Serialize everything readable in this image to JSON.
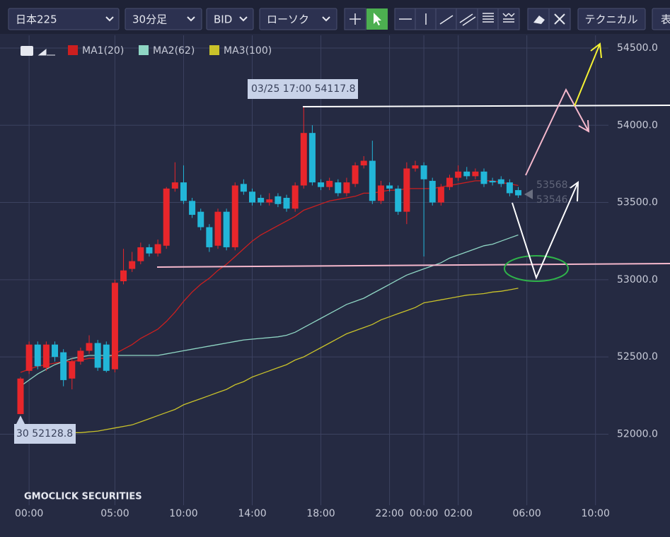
{
  "toolbar": {
    "symbol": "日本225",
    "timeframe": "30分足",
    "price_type": "BID",
    "chart_type": "ローソク",
    "technical": "テクニカル",
    "extra": "表"
  },
  "chart_data": {
    "type": "candlestick",
    "categories": [
      null,
      "00:00",
      null,
      null,
      null,
      null,
      null,
      null,
      null,
      null,
      null,
      "05:00",
      null,
      null,
      null,
      null,
      null,
      null,
      null,
      "10:00",
      null,
      null,
      null,
      null,
      null,
      null,
      null,
      "14:00",
      null,
      null,
      null,
      null,
      null,
      null,
      null,
      "18:00",
      null,
      null,
      null,
      null,
      null,
      null,
      null,
      "22:00",
      null,
      null,
      null,
      "00:00",
      null,
      null,
      null,
      "02:00",
      null,
      null,
      null,
      null,
      null,
      null,
      null,
      "06:00",
      null,
      null,
      null,
      null,
      null,
      null,
      null,
      "10:00"
    ],
    "open": [
      52130,
      52410,
      52580,
      52430,
      52580,
      52530,
      52360,
      52470,
      52540,
      52590,
      52580,
      52420,
      52990,
      53070,
      53120,
      53210,
      53170,
      53220,
      53590,
      53630,
      53510,
      53440,
      53340,
      53220,
      53440,
      53210,
      53620,
      53570,
      53530,
      53500,
      53540,
      53530,
      53460,
      53610,
      53950,
      53630,
      53600,
      53630,
      53560,
      53620,
      53740,
      53770,
      53510,
      53610,
      53590,
      53440,
      53720,
      53740,
      53640,
      53500,
      53600,
      53660,
      53700,
      53670,
      53700,
      53640,
      53650,
      53630,
      53580,
      null,
      null,
      null,
      null,
      null,
      null,
      null,
      null,
      null
    ],
    "high": [
      52370,
      52600,
      52600,
      52600,
      52600,
      52550,
      52490,
      52560,
      52640,
      52610,
      52600,
      53000,
      53200,
      53180,
      53240,
      53230,
      53260,
      53600,
      53760,
      53740,
      53530,
      53460,
      53360,
      53460,
      53460,
      53630,
      53650,
      53590,
      53550,
      53560,
      53560,
      53550,
      53630,
      54117.8,
      54000,
      53650,
      53660,
      53650,
      53660,
      53760,
      53800,
      53900,
      53640,
      53630,
      53610,
      53760,
      53770,
      53760,
      53660,
      53620,
      53680,
      53740,
      53730,
      53720,
      53720,
      53660,
      53670,
      53650,
      53600,
      null,
      null,
      null,
      null,
      null,
      null,
      null,
      null,
      null
    ],
    "low": [
      52128.8,
      52390,
      52420,
      52410,
      52470,
      52310,
      52290,
      52450,
      52520,
      52410,
      52400,
      52400,
      52970,
      53050,
      53100,
      53150,
      53150,
      53200,
      53570,
      53490,
      53400,
      53320,
      53180,
      53200,
      53190,
      53190,
      53550,
      53480,
      53480,
      53480,
      53470,
      53440,
      53440,
      53590,
      53610,
      53580,
      53580,
      53540,
      53540,
      53600,
      53720,
      53490,
      53490,
      53570,
      53420,
      53360,
      53700,
      53150,
      53480,
      53480,
      53580,
      53640,
      53650,
      53650,
      53600,
      53610,
      53600,
      53540,
      53530,
      null,
      null,
      null,
      null,
      null,
      null,
      null,
      null,
      null
    ],
    "close": [
      52360,
      52580,
      52440,
      52580,
      52500,
      52350,
      52470,
      52540,
      52590,
      52430,
      52410,
      52980,
      53060,
      53120,
      53210,
      53170,
      53230,
      53590,
      53630,
      53510,
      53420,
      53340,
      53210,
      53440,
      53210,
      53610,
      53570,
      53500,
      53500,
      53520,
      53490,
      53460,
      53610,
      53950,
      53630,
      53600,
      53640,
      53560,
      53630,
      53740,
      53770,
      53510,
      53610,
      53590,
      53440,
      53720,
      53740,
      53650,
      53500,
      53600,
      53660,
      53700,
      53670,
      53700,
      53620,
      53630,
      53620,
      53560,
      53546,
      null,
      null,
      null,
      null,
      null,
      null,
      null,
      null,
      null
    ],
    "up_color": "#e8262b",
    "down_color": "#22b6d8",
    "series": [
      {
        "name": "MA1(20)",
        "color": "#cc1f1f",
        "values": [
          52400,
          52420,
          52440,
          52450,
          52460,
          52470,
          52470,
          52480,
          52490,
          52490,
          52490,
          52520,
          52550,
          52580,
          52620,
          52650,
          52680,
          52730,
          52790,
          52860,
          52920,
          52970,
          53010,
          53060,
          53100,
          53150,
          53200,
          53250,
          53290,
          53320,
          53350,
          53380,
          53410,
          53450,
          53470,
          53490,
          53510,
          53520,
          53530,
          53540,
          53560,
          53560,
          53570,
          53580,
          53580,
          53590,
          53590,
          53590,
          53590,
          53600,
          53610,
          53620,
          53630,
          53640,
          53640,
          53640,
          53630,
          53620,
          53610,
          null,
          null,
          null,
          null,
          null,
          null,
          null,
          null,
          null
        ]
      },
      {
        "name": "MA2(62)",
        "color": "#8fd6c4",
        "values": [
          52310,
          52350,
          52390,
          52420,
          52450,
          52470,
          52490,
          52500,
          52510,
          52510,
          52510,
          52510,
          52510,
          52510,
          52510,
          52510,
          52510,
          52520,
          52530,
          52540,
          52550,
          52560,
          52570,
          52580,
          52590,
          52600,
          52610,
          52615,
          52620,
          52625,
          52630,
          52640,
          52660,
          52690,
          52720,
          52750,
          52780,
          52810,
          52840,
          52860,
          52880,
          52910,
          52940,
          52970,
          53000,
          53030,
          53050,
          53070,
          53090,
          53110,
          53140,
          53160,
          53180,
          53200,
          53220,
          53230,
          53250,
          53270,
          53290,
          null,
          null,
          null,
          null,
          null,
          null,
          null,
          null,
          null
        ]
      },
      {
        "name": "MA3(100)",
        "color": "#c9c22a",
        "values": [
          51990,
          51995,
          52000,
          52000,
          52000,
          52005,
          52010,
          52010,
          52015,
          52020,
          52030,
          52040,
          52050,
          52060,
          52080,
          52100,
          52120,
          52140,
          52160,
          52190,
          52210,
          52230,
          52250,
          52270,
          52290,
          52320,
          52340,
          52370,
          52390,
          52410,
          52430,
          52450,
          52480,
          52500,
          52530,
          52560,
          52590,
          52620,
          52650,
          52670,
          52690,
          52710,
          52740,
          52760,
          52780,
          52800,
          52820,
          52850,
          52860,
          52870,
          52880,
          52890,
          52900,
          52905,
          52910,
          52920,
          52925,
          52935,
          52945,
          null,
          null,
          null,
          null,
          null,
          null,
          null,
          null,
          null
        ]
      }
    ],
    "ylim": [
      51540,
      54605
    ],
    "yticks": [
      {
        "value": 52000,
        "label": "52000.0"
      },
      {
        "value": 52500,
        "label": "52500.0"
      },
      {
        "value": 53000,
        "label": "53000.0"
      },
      {
        "value": 53500,
        "label": "53500.0"
      },
      {
        "value": 54000,
        "label": "54000.0"
      },
      {
        "value": 54500,
        "label": "54500.0"
      }
    ],
    "grid": true,
    "annotations": [
      "03/25 17:00 54117.8",
      "30 52128.8",
      "53568.",
      "53546"
    ],
    "watermark": "GMOCLICK SECURITIES"
  }
}
